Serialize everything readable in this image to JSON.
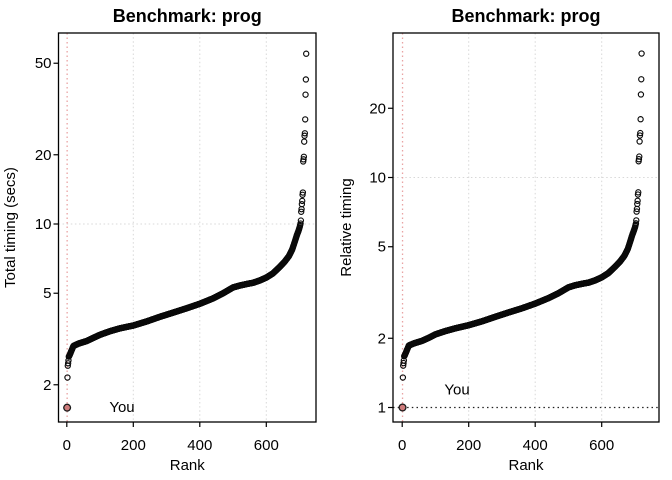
{
  "figure": {
    "background": "#ffffff",
    "description": "Two side-by-side log-scale rank scatter plots of benchmark timings"
  },
  "colors": {
    "point_stroke": "#0a0a0a",
    "grid": "#d8d8d8",
    "accent_vline": "#e9a3a3",
    "you_fill": "#ce7b7b",
    "you_ring": "#1a1a1a",
    "you_text": "#ec9595",
    "ref_hline": "#222222",
    "panel_border": "#000000",
    "tick": "#000000"
  },
  "chart_data": [
    {
      "type": "scatter",
      "title": "Benchmark: prog",
      "xlabel": "Rank",
      "ylabel": "Total timing (secs)",
      "x_ticks": [
        0,
        200,
        400,
        600
      ],
      "y_ticks": [
        2,
        5,
        10,
        20,
        50
      ],
      "y_scale": "log",
      "x_range_rank": [
        -26,
        749
      ],
      "y_range": [
        1.38,
        65
      ],
      "n_ranks": 720,
      "v_gridlines": [
        200,
        400,
        600
      ],
      "h_gridlines": [
        10
      ],
      "you_vline_rank": 1,
      "ref_hline_value": null,
      "you_point": {
        "rank": 1,
        "value": 1.59
      },
      "annotation": {
        "text": "You",
        "rank": 166,
        "value": 1.6
      },
      "low_points": [
        [
          2,
          2.15
        ],
        [
          3,
          2.42
        ],
        [
          4,
          2.48
        ],
        [
          5,
          2.55
        ]
      ],
      "curve_anchors": [
        [
          6,
          2.65
        ],
        [
          8,
          2.68
        ],
        [
          20,
          2.95
        ],
        [
          35,
          3.02
        ],
        [
          60,
          3.1
        ],
        [
          80,
          3.2
        ],
        [
          100,
          3.3
        ],
        [
          130,
          3.42
        ],
        [
          160,
          3.52
        ],
        [
          200,
          3.62
        ],
        [
          240,
          3.77
        ],
        [
          280,
          3.95
        ],
        [
          320,
          4.12
        ],
        [
          360,
          4.3
        ],
        [
          400,
          4.5
        ],
        [
          440,
          4.75
        ],
        [
          470,
          5.0
        ],
        [
          500,
          5.3
        ],
        [
          520,
          5.4
        ],
        [
          545,
          5.5
        ],
        [
          560,
          5.55
        ],
        [
          580,
          5.68
        ],
        [
          600,
          5.85
        ],
        [
          620,
          6.1
        ],
        [
          640,
          6.5
        ],
        [
          655,
          6.85
        ],
        [
          668,
          7.25
        ],
        [
          678,
          7.75
        ],
        [
          686,
          8.4
        ],
        [
          692,
          8.95
        ],
        [
          697,
          9.35
        ],
        [
          700,
          9.65
        ],
        [
          702,
          9.9
        ]
      ],
      "outliers": [
        [
          703,
          10.05
        ],
        [
          704,
          10.35
        ],
        [
          705,
          11.3
        ],
        [
          706,
          11.6
        ],
        [
          707,
          12.2
        ],
        [
          708,
          12.6
        ],
        [
          709,
          13.4
        ],
        [
          710,
          13.7
        ],
        [
          711,
          18.7
        ],
        [
          712,
          19.1
        ],
        [
          713,
          19.6
        ],
        [
          714,
          22.8
        ],
        [
          715,
          24.2
        ],
        [
          716,
          24.8
        ],
        [
          717,
          28.5
        ],
        [
          718,
          36.5
        ],
        [
          719,
          42.5
        ],
        [
          720,
          55
        ]
      ]
    },
    {
      "type": "scatter",
      "title": "Benchmark: prog",
      "xlabel": "Rank",
      "ylabel": "Relative timing",
      "x_ticks": [
        0,
        200,
        400,
        600
      ],
      "y_ticks": [
        1,
        2,
        5,
        10,
        20
      ],
      "y_scale": "log",
      "x_range_rank": [
        -26,
        749
      ],
      "y_range": [
        0.86,
        40
      ],
      "n_ranks": 720,
      "v_gridlines": [
        200,
        400,
        600
      ],
      "h_gridlines": [
        10
      ],
      "you_vline_rank": 1,
      "ref_hline_value": 1,
      "you_point": {
        "rank": 1,
        "value": 1.0
      },
      "annotation": {
        "text": "You",
        "rank": 165,
        "value": 1.2
      },
      "low_points": [
        [
          2,
          1.35
        ],
        [
          3,
          1.52
        ],
        [
          4,
          1.56
        ],
        [
          5,
          1.6
        ]
      ],
      "curve_anchors": [
        [
          6,
          1.67
        ],
        [
          8,
          1.69
        ],
        [
          20,
          1.86
        ],
        [
          35,
          1.9
        ],
        [
          60,
          1.95
        ],
        [
          80,
          2.01
        ],
        [
          100,
          2.08
        ],
        [
          130,
          2.15
        ],
        [
          160,
          2.21
        ],
        [
          200,
          2.28
        ],
        [
          240,
          2.37
        ],
        [
          280,
          2.48
        ],
        [
          320,
          2.59
        ],
        [
          360,
          2.7
        ],
        [
          400,
          2.83
        ],
        [
          440,
          2.99
        ],
        [
          470,
          3.14
        ],
        [
          500,
          3.33
        ],
        [
          520,
          3.4
        ],
        [
          545,
          3.46
        ],
        [
          560,
          3.49
        ],
        [
          580,
          3.57
        ],
        [
          600,
          3.68
        ],
        [
          620,
          3.84
        ],
        [
          640,
          4.09
        ],
        [
          655,
          4.31
        ],
        [
          668,
          4.56
        ],
        [
          678,
          4.87
        ],
        [
          686,
          5.28
        ],
        [
          692,
          5.63
        ],
        [
          697,
          5.88
        ],
        [
          700,
          6.07
        ],
        [
          702,
          6.23
        ]
      ],
      "outliers": [
        [
          703,
          6.32
        ],
        [
          704,
          6.51
        ],
        [
          705,
          7.11
        ],
        [
          706,
          7.3
        ],
        [
          707,
          7.67
        ],
        [
          708,
          7.92
        ],
        [
          709,
          8.43
        ],
        [
          710,
          8.62
        ],
        [
          711,
          11.76
        ],
        [
          712,
          12.01
        ],
        [
          713,
          12.33
        ],
        [
          714,
          14.34
        ],
        [
          715,
          15.22
        ],
        [
          716,
          15.6
        ],
        [
          717,
          17.92
        ],
        [
          718,
          22.96
        ],
        [
          719,
          26.73
        ],
        [
          720,
          34.59
        ]
      ]
    }
  ]
}
